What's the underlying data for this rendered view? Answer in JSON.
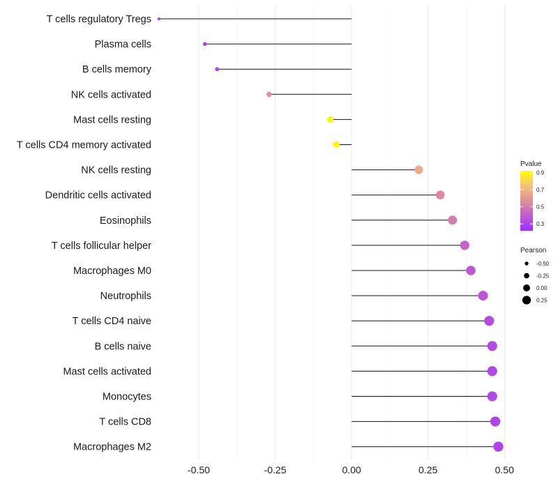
{
  "chart_data": {
    "type": "lollipop",
    "title": "",
    "xlabel": "",
    "ylabel": "",
    "xlim": [
      -0.63,
      0.52
    ],
    "x_ticks": [
      {
        "value": -0.5,
        "label": "-0.50"
      },
      {
        "value": -0.25,
        "label": "-0.25"
      },
      {
        "value": 0,
        "label": "0.00"
      },
      {
        "value": 0.25,
        "label": "0.25"
      },
      {
        "value": 0.5,
        "label": "0.50"
      }
    ],
    "grid": true,
    "categories": [
      "T cells regulatory  Tregs",
      "Plasma cells",
      "B cells memory",
      "NK cells activated",
      "Mast cells resting",
      "T cells CD4 memory activated",
      "NK cells resting",
      "Dendritic cells activated",
      "Eosinophils",
      "T cells follicular helper",
      "Macrophages M0",
      "Neutrophils",
      "T cells CD4 naive",
      "B cells naive",
      "Mast cells activated",
      "Monocytes",
      "T cells CD8",
      "Macrophages M2"
    ],
    "pearson": [
      -0.63,
      -0.48,
      -0.44,
      -0.27,
      -0.07,
      -0.05,
      0.22,
      0.29,
      0.33,
      0.37,
      0.39,
      0.43,
      0.45,
      0.46,
      0.46,
      0.46,
      0.47,
      0.48
    ],
    "pvalue": [
      0.3,
      0.28,
      0.32,
      0.58,
      0.9,
      0.9,
      0.66,
      0.55,
      0.51,
      0.42,
      0.38,
      0.37,
      0.34,
      0.33,
      0.32,
      0.32,
      0.31,
      0.31
    ],
    "legend_pvalue": {
      "title": "Pvalue",
      "ticks": [
        {
          "value": 0.9,
          "label": "0.9"
        },
        {
          "value": 0.7,
          "label": "0.7"
        },
        {
          "value": 0.5,
          "label": "0.5"
        },
        {
          "value": 0.3,
          "label": "0.3"
        }
      ],
      "range": [
        0.22,
        0.92
      ],
      "colors": [
        "#9B30FF",
        "#C05BD0",
        "#E0909A",
        "#F6C07A",
        "#FFFF00"
      ]
    },
    "legend_pearson": {
      "title": "Pearson",
      "entries": [
        {
          "value": -0.5,
          "label": "-0.50"
        },
        {
          "value": -0.25,
          "label": "-0.25"
        },
        {
          "value": 0,
          "label": "0.00"
        },
        {
          "value": 0.25,
          "label": "0.25"
        }
      ]
    },
    "legend_placement": "right"
  }
}
